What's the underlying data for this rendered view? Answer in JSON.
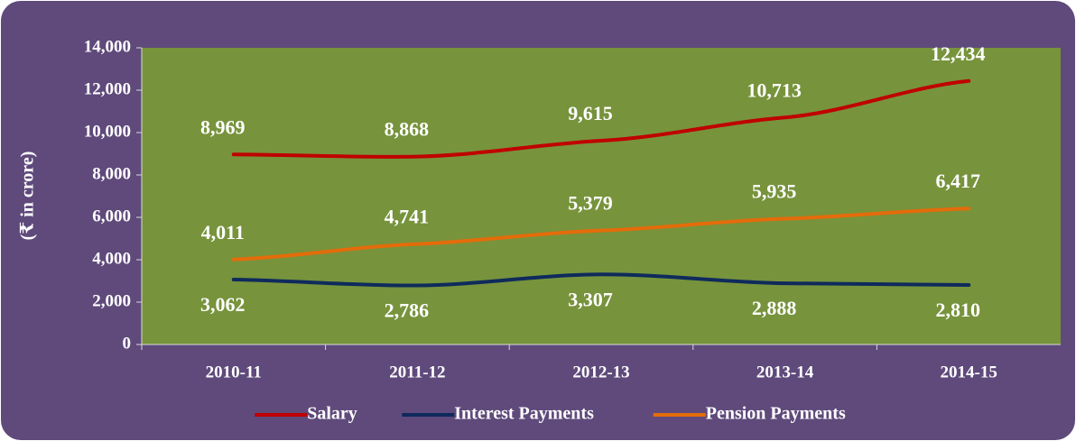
{
  "chart_data": {
    "type": "line",
    "y_label": "(₹ in crore)",
    "categories": [
      "2010-11",
      "2011-12",
      "2012-13",
      "2013-14",
      "2014-15"
    ],
    "series": [
      {
        "name": "Salary",
        "color": "#c00000",
        "values": [
          8969,
          8868,
          9615,
          10713,
          12434
        ],
        "value_labels": [
          "8,969",
          "8,868",
          "9,615",
          "10,713",
          "12,434"
        ],
        "label_position": "above"
      },
      {
        "name": "Interest Payments",
        "color": "#0f2a5c",
        "values": [
          3062,
          2786,
          3307,
          2888,
          2810
        ],
        "value_labels": [
          "3,062",
          "2,786",
          "3,307",
          "2,888",
          "2,810"
        ],
        "label_position": "below"
      },
      {
        "name": "Pension Payments",
        "color": "#e46c0a",
        "values": [
          4011,
          4741,
          5379,
          5935,
          6417
        ],
        "value_labels": [
          "4,011",
          "4,741",
          "5,379",
          "5,935",
          "6,417"
        ],
        "label_position": "above"
      }
    ],
    "ylim": [
      0,
      14000
    ],
    "yticks": [
      0,
      {
        "value": 2000,
        "label": "2,000"
      },
      {
        "value": 4000,
        "label": "4,000"
      },
      {
        "value": 6000,
        "label": "6,000"
      },
      {
        "value": 8000,
        "label": "8,000"
      },
      {
        "value": 10000,
        "label": "10,000"
      },
      {
        "value": 12000,
        "label": "12,000"
      },
      {
        "value": 14000,
        "label": "14,000"
      }
    ],
    "grid": false,
    "legend": "bottom",
    "background_color": "#5f4a7b",
    "plot_color": "#77933c"
  }
}
